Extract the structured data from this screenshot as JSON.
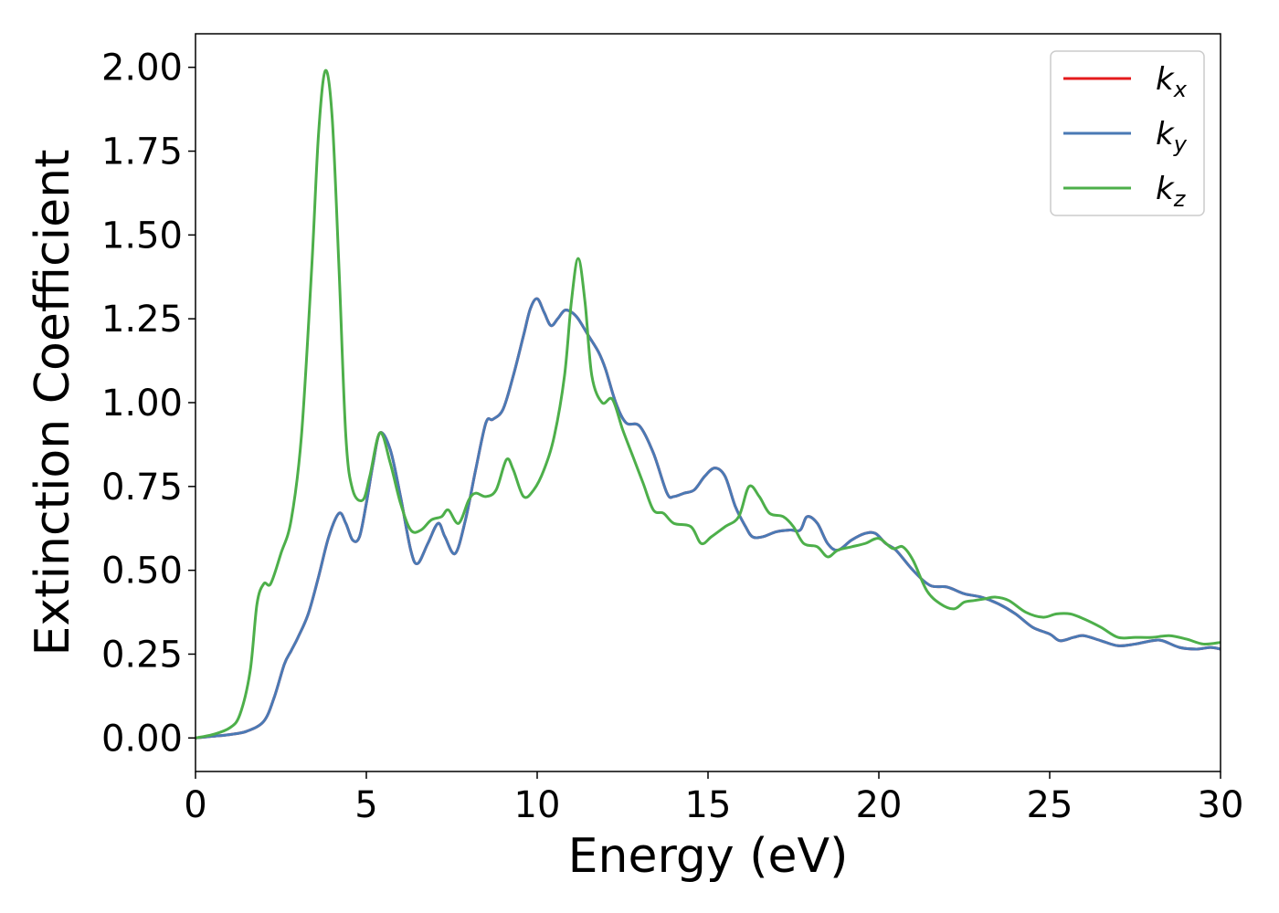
{
  "chart_data": {
    "type": "line",
    "title": "",
    "xlabel": "Energy (eV)",
    "ylabel": "Extinction Coefficient",
    "xlim": [
      0,
      30
    ],
    "ylim": [
      -0.1,
      2.1
    ],
    "xticks": [
      0,
      5,
      10,
      15,
      20,
      25,
      30
    ],
    "yticks": [
      0.0,
      0.25,
      0.5,
      0.75,
      1.0,
      1.25,
      1.5,
      1.75,
      2.0
    ],
    "xtick_labels": [
      "0",
      "5",
      "10",
      "15",
      "20",
      "25",
      "30"
    ],
    "ytick_labels": [
      "0.00",
      "0.25",
      "0.50",
      "0.75",
      "1.00",
      "1.25",
      "1.50",
      "1.75",
      "2.00"
    ],
    "grid": false,
    "legend_position": "top-right",
    "series": [
      {
        "name": "k",
        "subscript": "x",
        "color": "#e41a1c",
        "x": [
          0,
          0.5,
          1.0,
          1.5,
          2.0,
          2.3,
          2.6,
          2.8,
          3.0,
          3.3,
          3.6,
          3.9,
          4.2,
          4.4,
          4.6,
          4.8,
          5.0,
          5.2,
          5.4,
          5.7,
          6.0,
          6.3,
          6.5,
          6.8,
          7.1,
          7.3,
          7.6,
          7.9,
          8.2,
          8.5,
          8.7,
          9.0,
          9.3,
          9.6,
          9.8,
          10.0,
          10.2,
          10.4,
          10.6,
          10.8,
          11.0,
          11.2,
          11.5,
          11.8,
          12.0,
          12.3,
          12.6,
          13.0,
          13.4,
          13.8,
          14.0,
          14.3,
          14.6,
          14.9,
          15.2,
          15.5,
          15.8,
          16.1,
          16.3,
          16.6,
          17.0,
          17.4,
          17.7,
          17.9,
          18.2,
          18.5,
          18.8,
          19.2,
          19.6,
          19.9,
          20.2,
          20.5,
          21.0,
          21.5,
          22.0,
          22.5,
          23.0,
          23.5,
          24.0,
          24.5,
          25.0,
          25.3,
          25.7,
          26.0,
          26.5,
          27.0,
          27.5,
          28.0,
          28.3,
          28.8,
          29.3,
          29.7,
          30.0
        ],
        "y": [
          0.0,
          0.005,
          0.01,
          0.02,
          0.05,
          0.12,
          0.22,
          0.26,
          0.3,
          0.37,
          0.48,
          0.6,
          0.67,
          0.64,
          0.59,
          0.6,
          0.7,
          0.82,
          0.91,
          0.86,
          0.72,
          0.56,
          0.52,
          0.58,
          0.64,
          0.6,
          0.55,
          0.65,
          0.8,
          0.94,
          0.95,
          0.98,
          1.08,
          1.2,
          1.28,
          1.31,
          1.27,
          1.23,
          1.25,
          1.275,
          1.27,
          1.25,
          1.2,
          1.15,
          1.1,
          1.0,
          0.94,
          0.93,
          0.85,
          0.73,
          0.72,
          0.73,
          0.74,
          0.78,
          0.805,
          0.78,
          0.69,
          0.63,
          0.6,
          0.6,
          0.615,
          0.62,
          0.62,
          0.66,
          0.64,
          0.58,
          0.56,
          0.59,
          0.61,
          0.61,
          0.58,
          0.56,
          0.5,
          0.455,
          0.45,
          0.43,
          0.42,
          0.4,
          0.37,
          0.33,
          0.31,
          0.29,
          0.3,
          0.305,
          0.29,
          0.275,
          0.28,
          0.29,
          0.29,
          0.27,
          0.265,
          0.27,
          0.265
        ]
      },
      {
        "name": "k",
        "subscript": "y",
        "color": "#4a7ab5",
        "x": [
          0,
          0.5,
          1.0,
          1.5,
          2.0,
          2.3,
          2.6,
          2.8,
          3.0,
          3.3,
          3.6,
          3.9,
          4.2,
          4.4,
          4.6,
          4.8,
          5.0,
          5.2,
          5.4,
          5.7,
          6.0,
          6.3,
          6.5,
          6.8,
          7.1,
          7.3,
          7.6,
          7.9,
          8.2,
          8.5,
          8.7,
          9.0,
          9.3,
          9.6,
          9.8,
          10.0,
          10.2,
          10.4,
          10.6,
          10.8,
          11.0,
          11.2,
          11.5,
          11.8,
          12.0,
          12.3,
          12.6,
          13.0,
          13.4,
          13.8,
          14.0,
          14.3,
          14.6,
          14.9,
          15.2,
          15.5,
          15.8,
          16.1,
          16.3,
          16.6,
          17.0,
          17.4,
          17.7,
          17.9,
          18.2,
          18.5,
          18.8,
          19.2,
          19.6,
          19.9,
          20.2,
          20.5,
          21.0,
          21.5,
          22.0,
          22.5,
          23.0,
          23.5,
          24.0,
          24.5,
          25.0,
          25.3,
          25.7,
          26.0,
          26.5,
          27.0,
          27.5,
          28.0,
          28.3,
          28.8,
          29.3,
          29.7,
          30.0
        ],
        "y": [
          0.0,
          0.005,
          0.01,
          0.02,
          0.05,
          0.12,
          0.22,
          0.26,
          0.3,
          0.37,
          0.48,
          0.6,
          0.67,
          0.64,
          0.59,
          0.6,
          0.7,
          0.82,
          0.91,
          0.86,
          0.72,
          0.56,
          0.52,
          0.58,
          0.64,
          0.6,
          0.55,
          0.65,
          0.8,
          0.94,
          0.95,
          0.98,
          1.08,
          1.2,
          1.28,
          1.31,
          1.27,
          1.23,
          1.25,
          1.275,
          1.27,
          1.25,
          1.2,
          1.15,
          1.1,
          1.0,
          0.94,
          0.93,
          0.85,
          0.73,
          0.72,
          0.73,
          0.74,
          0.78,
          0.805,
          0.78,
          0.69,
          0.63,
          0.6,
          0.6,
          0.615,
          0.62,
          0.62,
          0.66,
          0.64,
          0.58,
          0.56,
          0.59,
          0.61,
          0.61,
          0.58,
          0.56,
          0.5,
          0.455,
          0.45,
          0.43,
          0.42,
          0.4,
          0.37,
          0.33,
          0.31,
          0.29,
          0.3,
          0.305,
          0.29,
          0.275,
          0.28,
          0.29,
          0.29,
          0.27,
          0.265,
          0.27,
          0.265
        ]
      },
      {
        "name": "k",
        "subscript": "z",
        "color": "#4daf4a",
        "x": [
          0,
          0.5,
          1.0,
          1.3,
          1.6,
          1.8,
          2.0,
          2.2,
          2.5,
          2.8,
          3.1,
          3.4,
          3.6,
          3.8,
          4.0,
          4.2,
          4.4,
          4.6,
          4.9,
          5.1,
          5.4,
          5.7,
          6.0,
          6.3,
          6.6,
          6.9,
          7.2,
          7.4,
          7.7,
          8.0,
          8.2,
          8.5,
          8.8,
          9.1,
          9.3,
          9.6,
          9.9,
          10.2,
          10.5,
          10.8,
          11.0,
          11.2,
          11.4,
          11.6,
          11.9,
          12.2,
          12.5,
          12.8,
          13.1,
          13.4,
          13.7,
          14.0,
          14.5,
          14.8,
          15.1,
          15.5,
          15.9,
          16.2,
          16.5,
          16.8,
          17.2,
          17.5,
          17.8,
          18.2,
          18.5,
          18.8,
          19.2,
          19.6,
          20.0,
          20.4,
          20.7,
          21.0,
          21.4,
          21.8,
          22.2,
          22.5,
          22.8,
          23.1,
          23.4,
          23.8,
          24.3,
          24.8,
          25.2,
          25.6,
          26.0,
          26.5,
          27.0,
          27.5,
          28.0,
          28.5,
          29.0,
          29.5,
          30.0
        ],
        "y": [
          0.0,
          0.01,
          0.03,
          0.07,
          0.2,
          0.4,
          0.46,
          0.46,
          0.55,
          0.65,
          0.9,
          1.4,
          1.8,
          1.99,
          1.85,
          1.4,
          0.9,
          0.74,
          0.71,
          0.78,
          0.91,
          0.82,
          0.7,
          0.62,
          0.62,
          0.65,
          0.66,
          0.68,
          0.64,
          0.71,
          0.73,
          0.72,
          0.74,
          0.83,
          0.8,
          0.72,
          0.74,
          0.8,
          0.9,
          1.08,
          1.3,
          1.43,
          1.3,
          1.08,
          1.0,
          1.01,
          0.92,
          0.84,
          0.76,
          0.68,
          0.67,
          0.64,
          0.63,
          0.58,
          0.6,
          0.63,
          0.66,
          0.75,
          0.72,
          0.67,
          0.66,
          0.63,
          0.58,
          0.57,
          0.54,
          0.56,
          0.57,
          0.58,
          0.595,
          0.565,
          0.57,
          0.53,
          0.44,
          0.4,
          0.385,
          0.405,
          0.41,
          0.415,
          0.42,
          0.41,
          0.375,
          0.36,
          0.37,
          0.37,
          0.355,
          0.33,
          0.3,
          0.3,
          0.3,
          0.305,
          0.295,
          0.28,
          0.285
        ]
      }
    ]
  }
}
